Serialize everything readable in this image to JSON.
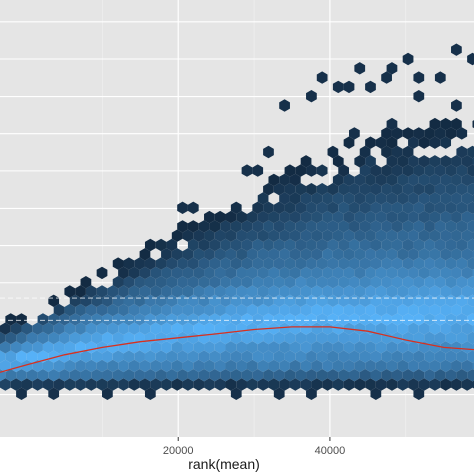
{
  "chart_data": {
    "type": "hexbin",
    "title": "",
    "xlabel": "rank(mean)",
    "ylabel": "",
    "xlim": [
      -3500,
      59000
    ],
    "ylim": [
      0,
      1
    ],
    "x_ticks": [
      {
        "value": 20000,
        "label": "20000"
      },
      {
        "value": 40000,
        "label": "40000"
      }
    ],
    "x_minor_gridlines": [
      10000,
      30000,
      50000
    ],
    "y_gridlines": [
      0.097,
      0.182,
      0.268,
      0.353,
      0.438,
      0.523,
      0.609,
      0.694,
      0.779,
      0.865,
      0.95
    ],
    "grid": true,
    "colors": {
      "panel_background": "#e5e5e5",
      "grid_major": "#ffffff",
      "grid_minor": "#f2f2f2",
      "low_count": "#132b43",
      "high_count": "#56b1f7",
      "smooth_line": "#d7301f",
      "reference_line": "#ffffff"
    },
    "series": [
      {
        "kind": "smooth",
        "x": [
          -3500,
          0,
          5000,
          10000,
          15000,
          20000,
          25000,
          30000,
          35000,
          40000,
          45000,
          50000,
          55000,
          59000
        ],
        "y": [
          0.148,
          0.165,
          0.188,
          0.205,
          0.218,
          0.227,
          0.236,
          0.246,
          0.252,
          0.252,
          0.242,
          0.222,
          0.205,
          0.2
        ]
      }
    ],
    "reference_lines": [
      0.318,
      0.267
    ],
    "density_profile": {
      "x": [
        -3500,
        0,
        5000,
        10000,
        15000,
        20000,
        25000,
        30000,
        35000,
        40000,
        45000,
        50000,
        55000,
        59000
      ],
      "core_low": [
        0.135,
        0.138,
        0.14,
        0.142,
        0.145,
        0.147,
        0.149,
        0.15,
        0.151,
        0.152,
        0.152,
        0.152,
        0.152,
        0.152
      ],
      "core_high": [
        0.21,
        0.226,
        0.255,
        0.28,
        0.305,
        0.33,
        0.35,
        0.37,
        0.385,
        0.395,
        0.4,
        0.405,
        0.41,
        0.41
      ],
      "upper_edge": [
        0.245,
        0.27,
        0.315,
        0.365,
        0.41,
        0.46,
        0.5,
        0.55,
        0.6,
        0.64,
        0.67,
        0.69,
        0.7,
        0.7
      ],
      "lower_edge": [
        0.115,
        0.115,
        0.115,
        0.115,
        0.115,
        0.115,
        0.115,
        0.115,
        0.115,
        0.115,
        0.115,
        0.115,
        0.115,
        0.115
      ]
    },
    "outlier_bins": [
      [
        20000,
        0.52
      ],
      [
        22000,
        0.52
      ],
      [
        28500,
        0.6
      ],
      [
        31000,
        0.6
      ],
      [
        32000,
        0.66
      ],
      [
        34500,
        0.75
      ],
      [
        37000,
        0.78
      ],
      [
        39000,
        0.82
      ],
      [
        40500,
        0.8
      ],
      [
        42500,
        0.8
      ],
      [
        44000,
        0.85
      ],
      [
        45500,
        0.8
      ],
      [
        47000,
        0.82
      ],
      [
        48500,
        0.85
      ],
      [
        50500,
        0.87
      ],
      [
        52000,
        0.82
      ],
      [
        55000,
        0.82
      ],
      [
        57000,
        0.88
      ],
      [
        58500,
        0.86
      ],
      [
        52000,
        0.78
      ],
      [
        56000,
        0.75
      ],
      [
        48000,
        0.72
      ],
      [
        54000,
        0.68
      ],
      [
        43000,
        0.7
      ],
      [
        45000,
        0.65
      ],
      [
        8500,
        0.3
      ],
      [
        12000,
        0.32
      ],
      [
        -3000,
        0.22
      ],
      [
        3000,
        0.1
      ],
      [
        11000,
        0.1
      ],
      [
        16000,
        0.1
      ],
      [
        27000,
        0.1
      ],
      [
        33000,
        0.1
      ],
      [
        38000,
        0.1
      ],
      [
        46000,
        0.1
      ],
      [
        52000,
        0.1
      ],
      [
        0,
        0.1
      ]
    ]
  }
}
